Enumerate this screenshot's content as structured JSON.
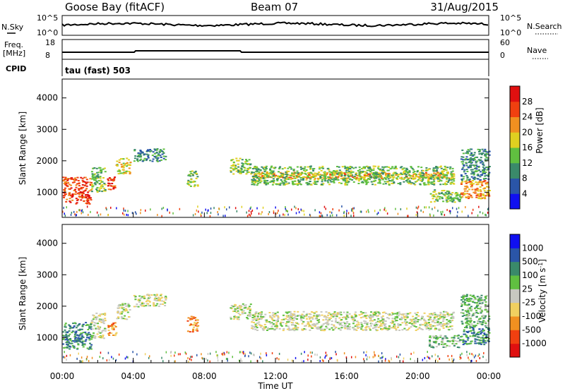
{
  "header": {
    "station": "Goose Bay (fitACF)",
    "beam": "Beam 07",
    "date": "31/Aug/2015"
  },
  "top_panels": {
    "nsky_label": "N.Sky",
    "nsky_ticks": [
      "10^5",
      "10^0"
    ],
    "nsearch_label": "N.Search",
    "nsearch_ticks": [
      "10^5",
      "10^0"
    ],
    "freq_label_1": "Freq.",
    "freq_label_2": "[MHz]",
    "freq_ticks": [
      "18",
      "8"
    ],
    "nave_label": "Nave",
    "nave_ticks": [
      "60",
      "0"
    ],
    "cpid_label": "CPID",
    "cpid_value": "tau (fast) 503"
  },
  "chart_data": [
    {
      "type": "heatmap",
      "ylabel": "Slant Range [km]",
      "yticks": [
        "1000",
        "2000",
        "3000",
        "4000"
      ],
      "ylim": [
        200,
        4600
      ],
      "xlim": [
        0,
        24
      ],
      "colorbar": {
        "label": "Power [dB]",
        "ticks": [
          "4",
          "8",
          "12",
          "16",
          "20",
          "24",
          "28"
        ],
        "colors": [
          "#1010f0",
          "#2a55a8",
          "#3a8a6a",
          "#60c040",
          "#e0d020",
          "#f09020",
          "#f04010",
          "#e01010"
        ]
      },
      "regions": [
        {
          "t0": 0.0,
          "t1": 1.6,
          "r0": 650,
          "r1": 1500,
          "level": 6
        },
        {
          "t0": 1.6,
          "t1": 2.4,
          "r0": 1000,
          "r1": 1800,
          "level": 3
        },
        {
          "t0": 2.5,
          "t1": 3.0,
          "r0": 1050,
          "r1": 1500,
          "level": 6
        },
        {
          "t0": 3.0,
          "t1": 3.8,
          "r0": 1600,
          "r1": 2100,
          "level": 4
        },
        {
          "t0": 4.0,
          "t1": 5.8,
          "r0": 2000,
          "r1": 2400,
          "level": 2
        },
        {
          "t0": 7.0,
          "t1": 7.6,
          "r0": 1200,
          "r1": 1700,
          "level": 3
        },
        {
          "t0": 9.4,
          "t1": 10.6,
          "r0": 1600,
          "r1": 2100,
          "level": 3
        },
        {
          "t0": 10.6,
          "t1": 22.0,
          "r0": 1450,
          "r1": 1650,
          "level": 5
        },
        {
          "t0": 10.6,
          "t1": 22.0,
          "r0": 1250,
          "r1": 1850,
          "level": 3
        },
        {
          "t0": 20.6,
          "t1": 22.4,
          "r0": 700,
          "r1": 1100,
          "level": 3
        },
        {
          "t0": 22.4,
          "t1": 24.0,
          "r0": 800,
          "r1": 1400,
          "level": 5
        },
        {
          "t0": 22.4,
          "t1": 24.0,
          "r0": 1400,
          "r1": 2400,
          "level": 2
        }
      ]
    },
    {
      "type": "heatmap",
      "ylabel": "Slant Range [km]",
      "yticks": [
        "1000",
        "2000",
        "3000",
        "4000"
      ],
      "ylim": [
        200,
        4600
      ],
      "xlim": [
        0,
        24
      ],
      "xlabel": "Time UT",
      "xticks": [
        "00:00",
        "04:00",
        "08:00",
        "12:00",
        "16:00",
        "20:00",
        "00:00"
      ],
      "colorbar": {
        "label": "Velocity [m s",
        "label_sup": "-1",
        "label_end": "]",
        "ticks": [
          "-1000",
          "-500",
          "-100",
          "-25",
          "25",
          "100",
          "500",
          "1000"
        ],
        "colors": [
          "#e01010",
          "#f04010",
          "#f09020",
          "#f0d060",
          "#c8c8c0",
          "#60c040",
          "#3a8a6a",
          "#2a55a8",
          "#1010f0"
        ]
      },
      "regions": [
        {
          "t0": 0.0,
          "t1": 1.6,
          "r0": 650,
          "r1": 1500,
          "level": 6
        },
        {
          "t0": 1.6,
          "t1": 2.4,
          "r0": 1000,
          "r1": 1800,
          "level": 4
        },
        {
          "t0": 2.5,
          "t1": 3.0,
          "r0": 1050,
          "r1": 1500,
          "level": 2
        },
        {
          "t0": 3.0,
          "t1": 3.8,
          "r0": 1600,
          "r1": 2100,
          "level": 4
        },
        {
          "t0": 4.0,
          "t1": 5.8,
          "r0": 2000,
          "r1": 2400,
          "level": 4
        },
        {
          "t0": 7.0,
          "t1": 7.6,
          "r0": 1200,
          "r1": 1700,
          "level": 2
        },
        {
          "t0": 9.4,
          "t1": 10.6,
          "r0": 1600,
          "r1": 2100,
          "level": 4
        },
        {
          "t0": 10.6,
          "t1": 22.0,
          "r0": 1250,
          "r1": 1850,
          "level": 4
        },
        {
          "t0": 20.6,
          "t1": 22.4,
          "r0": 700,
          "r1": 1100,
          "level": 5
        },
        {
          "t0": 22.4,
          "t1": 24.0,
          "r0": 800,
          "r1": 1400,
          "level": 6
        },
        {
          "t0": 22.4,
          "t1": 24.0,
          "r0": 1400,
          "r1": 2400,
          "level": 5
        }
      ]
    }
  ]
}
